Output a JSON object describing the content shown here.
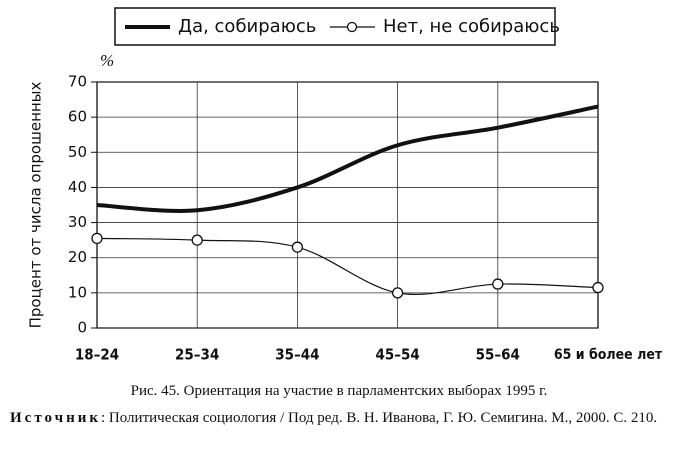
{
  "chart_data": {
    "type": "line",
    "y_label": "Процент от числа опрошенных",
    "y_unit": "%",
    "categories": [
      "18–24",
      "25–34",
      "35–44",
      "45–54",
      "55–64",
      "65 и более лет"
    ],
    "series": [
      {
        "name": "Да, собираюсь",
        "color": "#111111",
        "marker": "none",
        "line_width": 4,
        "values": [
          35,
          33.5,
          40,
          52,
          57,
          63
        ]
      },
      {
        "name": "Нет, не собираюсь",
        "color": "#111111",
        "marker": "circle",
        "line_width": 1.2,
        "values": [
          25.5,
          25,
          23,
          10,
          12.5,
          11.5
        ]
      }
    ],
    "ylim": [
      0,
      70
    ],
    "yticks": [
      0,
      10,
      20,
      30,
      40,
      50,
      60,
      70
    ],
    "grid": true,
    "legend": "top",
    "caption": "Рис. 45. Ориентация на участие в парламентских выборах 1995 г.",
    "source_label": "Источник",
    "source": ": Политическая социология / Под ред. В. Н. Иванова, Г. Ю. Семигина. М., 2000. С. 210."
  }
}
